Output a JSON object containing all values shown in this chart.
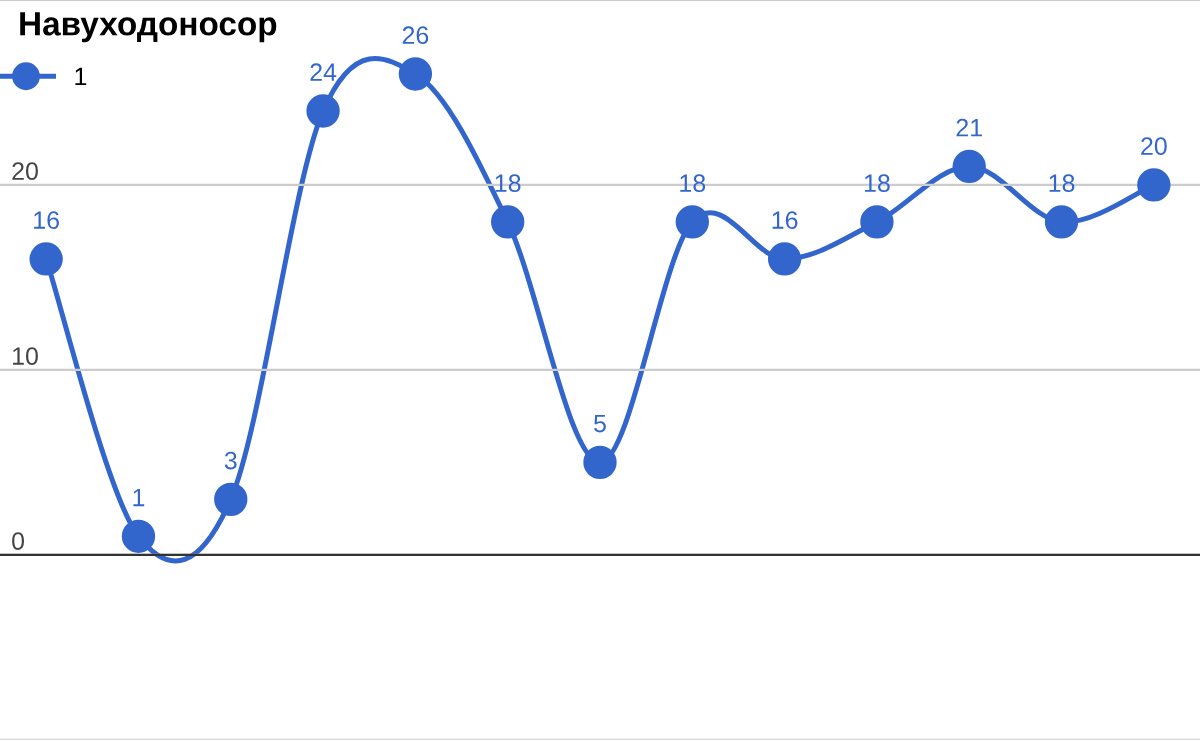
{
  "chart_data": {
    "type": "line",
    "title": "Навуходоносор",
    "categories": [
      null,
      null,
      null,
      null,
      null,
      null,
      null,
      null,
      null,
      null,
      null,
      null,
      null
    ],
    "series": [
      {
        "name": "1",
        "color": "#3366cc",
        "values": [
          16,
          1,
          3,
          24,
          26,
          18,
          5,
          18,
          16,
          18,
          21,
          18,
          20
        ]
      }
    ],
    "ylim": [
      -10,
      30
    ],
    "yticks": [
      {
        "value": -10,
        "label": null
      },
      0,
      10,
      20,
      {
        "value": 30,
        "label": null
      }
    ],
    "grid": "y",
    "legend": "top left",
    "marker": "circle",
    "line_style": "solid",
    "data_labels": true,
    "tick_labels": "y"
  }
}
